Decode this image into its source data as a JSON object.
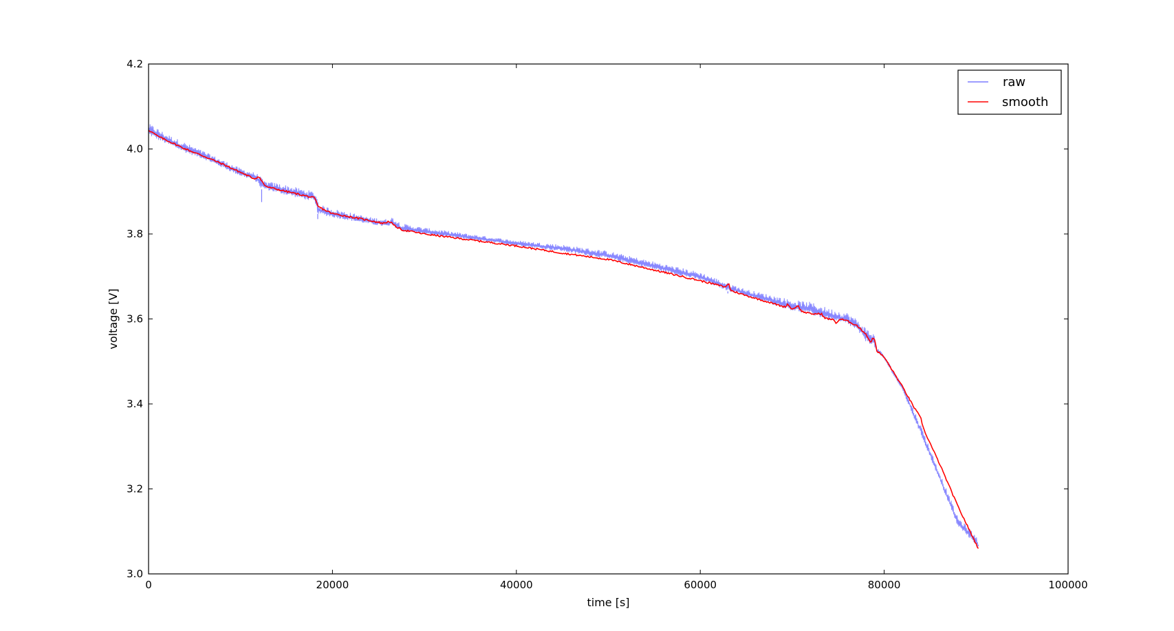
{
  "chart_data": {
    "type": "line",
    "title": "",
    "xlabel": "time [s]",
    "ylabel": "voltage [V]",
    "xlim": [
      0,
      100000
    ],
    "ylim": [
      3.0,
      4.2
    ],
    "x_ticks": [
      0,
      20000,
      40000,
      60000,
      80000,
      100000
    ],
    "x_tick_labels": [
      "0",
      "20000",
      "40000",
      "60000",
      "80000",
      "100000"
    ],
    "y_ticks": [
      3.0,
      3.2,
      3.4,
      3.6,
      3.8,
      4.0,
      4.2
    ],
    "y_tick_labels": [
      "3.0",
      "3.2",
      "3.4",
      "3.6",
      "3.8",
      "4.0",
      "4.2"
    ],
    "grid": false,
    "legend_position": "top-right",
    "series": [
      {
        "name": "raw",
        "color": "#7b7bff",
        "x": [
          0,
          500,
          2000,
          4000,
          6000,
          8000,
          10000,
          11500,
          12000,
          12200,
          12500,
          14000,
          16000,
          18000,
          18300,
          18500,
          20000,
          22000,
          24000,
          26000,
          26500,
          27500,
          30000,
          35000,
          40000,
          45000,
          50000,
          55000,
          60000,
          63000,
          65000,
          68000,
          70000,
          72000,
          74000,
          75000,
          76000,
          77000,
          78000,
          78900,
          79200,
          80000,
          82000,
          84000,
          86000,
          88000,
          90000,
          90300
        ],
        "upper": [
          4.06,
          4.055,
          4.035,
          4.015,
          3.995,
          3.975,
          3.955,
          3.945,
          3.94,
          3.935,
          3.925,
          3.92,
          3.91,
          3.9,
          3.895,
          3.87,
          3.86,
          3.85,
          3.84,
          3.835,
          3.84,
          3.825,
          3.815,
          3.8,
          3.785,
          3.775,
          3.76,
          3.735,
          3.71,
          3.685,
          3.67,
          3.655,
          3.645,
          3.64,
          3.625,
          3.62,
          3.615,
          3.6,
          3.58,
          3.565,
          3.535,
          3.515,
          3.445,
          3.35,
          3.24,
          3.135,
          3.09,
          3.075
        ],
        "lower": [
          4.03,
          4.025,
          4.01,
          3.99,
          3.975,
          3.955,
          3.935,
          3.925,
          3.915,
          3.905,
          3.905,
          3.895,
          3.885,
          3.875,
          3.85,
          3.845,
          3.838,
          3.83,
          3.822,
          3.815,
          3.818,
          3.805,
          3.798,
          3.785,
          3.772,
          3.758,
          3.74,
          3.715,
          3.69,
          3.665,
          3.652,
          3.632,
          3.618,
          3.608,
          3.596,
          3.59,
          3.585,
          3.572,
          3.545,
          3.535,
          3.52,
          3.505,
          3.43,
          3.325,
          3.22,
          3.11,
          3.068,
          3.055
        ]
      },
      {
        "name": "smooth",
        "color": "#ff0000",
        "x": [
          0,
          1000,
          2000,
          4000,
          6000,
          8000,
          10000,
          11500,
          12000,
          12300,
          12600,
          13000,
          14000,
          15000,
          16000,
          17000,
          18000,
          18200,
          18400,
          19000,
          20000,
          22000,
          24000,
          25500,
          26200,
          26700,
          27500,
          30000,
          35000,
          40000,
          45000,
          50000,
          51000,
          55000,
          60000,
          62800,
          63100,
          63300,
          65000,
          68000,
          69200,
          69500,
          70000,
          70600,
          71000,
          72000,
          73200,
          73500,
          74500,
          74800,
          75200,
          76000,
          77000,
          78000,
          78500,
          78800,
          79000,
          79200,
          80000,
          82000,
          83300,
          83600,
          84000,
          84300,
          86000,
          88000,
          90000,
          90300
        ],
        "y": [
          4.045,
          4.03,
          4.02,
          4.0,
          3.983,
          3.965,
          3.945,
          3.93,
          3.935,
          3.925,
          3.915,
          3.91,
          3.905,
          3.9,
          3.895,
          3.89,
          3.885,
          3.878,
          3.865,
          3.858,
          3.848,
          3.84,
          3.832,
          3.825,
          3.83,
          3.82,
          3.81,
          3.8,
          3.786,
          3.772,
          3.755,
          3.74,
          3.735,
          3.715,
          3.69,
          3.675,
          3.685,
          3.667,
          3.655,
          3.636,
          3.628,
          3.635,
          3.622,
          3.632,
          3.618,
          3.612,
          3.612,
          3.602,
          3.598,
          3.59,
          3.6,
          3.595,
          3.585,
          3.565,
          3.545,
          3.555,
          3.55,
          3.525,
          3.51,
          3.44,
          3.39,
          3.38,
          3.365,
          3.34,
          3.26,
          3.16,
          3.07,
          3.058
        ]
      }
    ]
  }
}
